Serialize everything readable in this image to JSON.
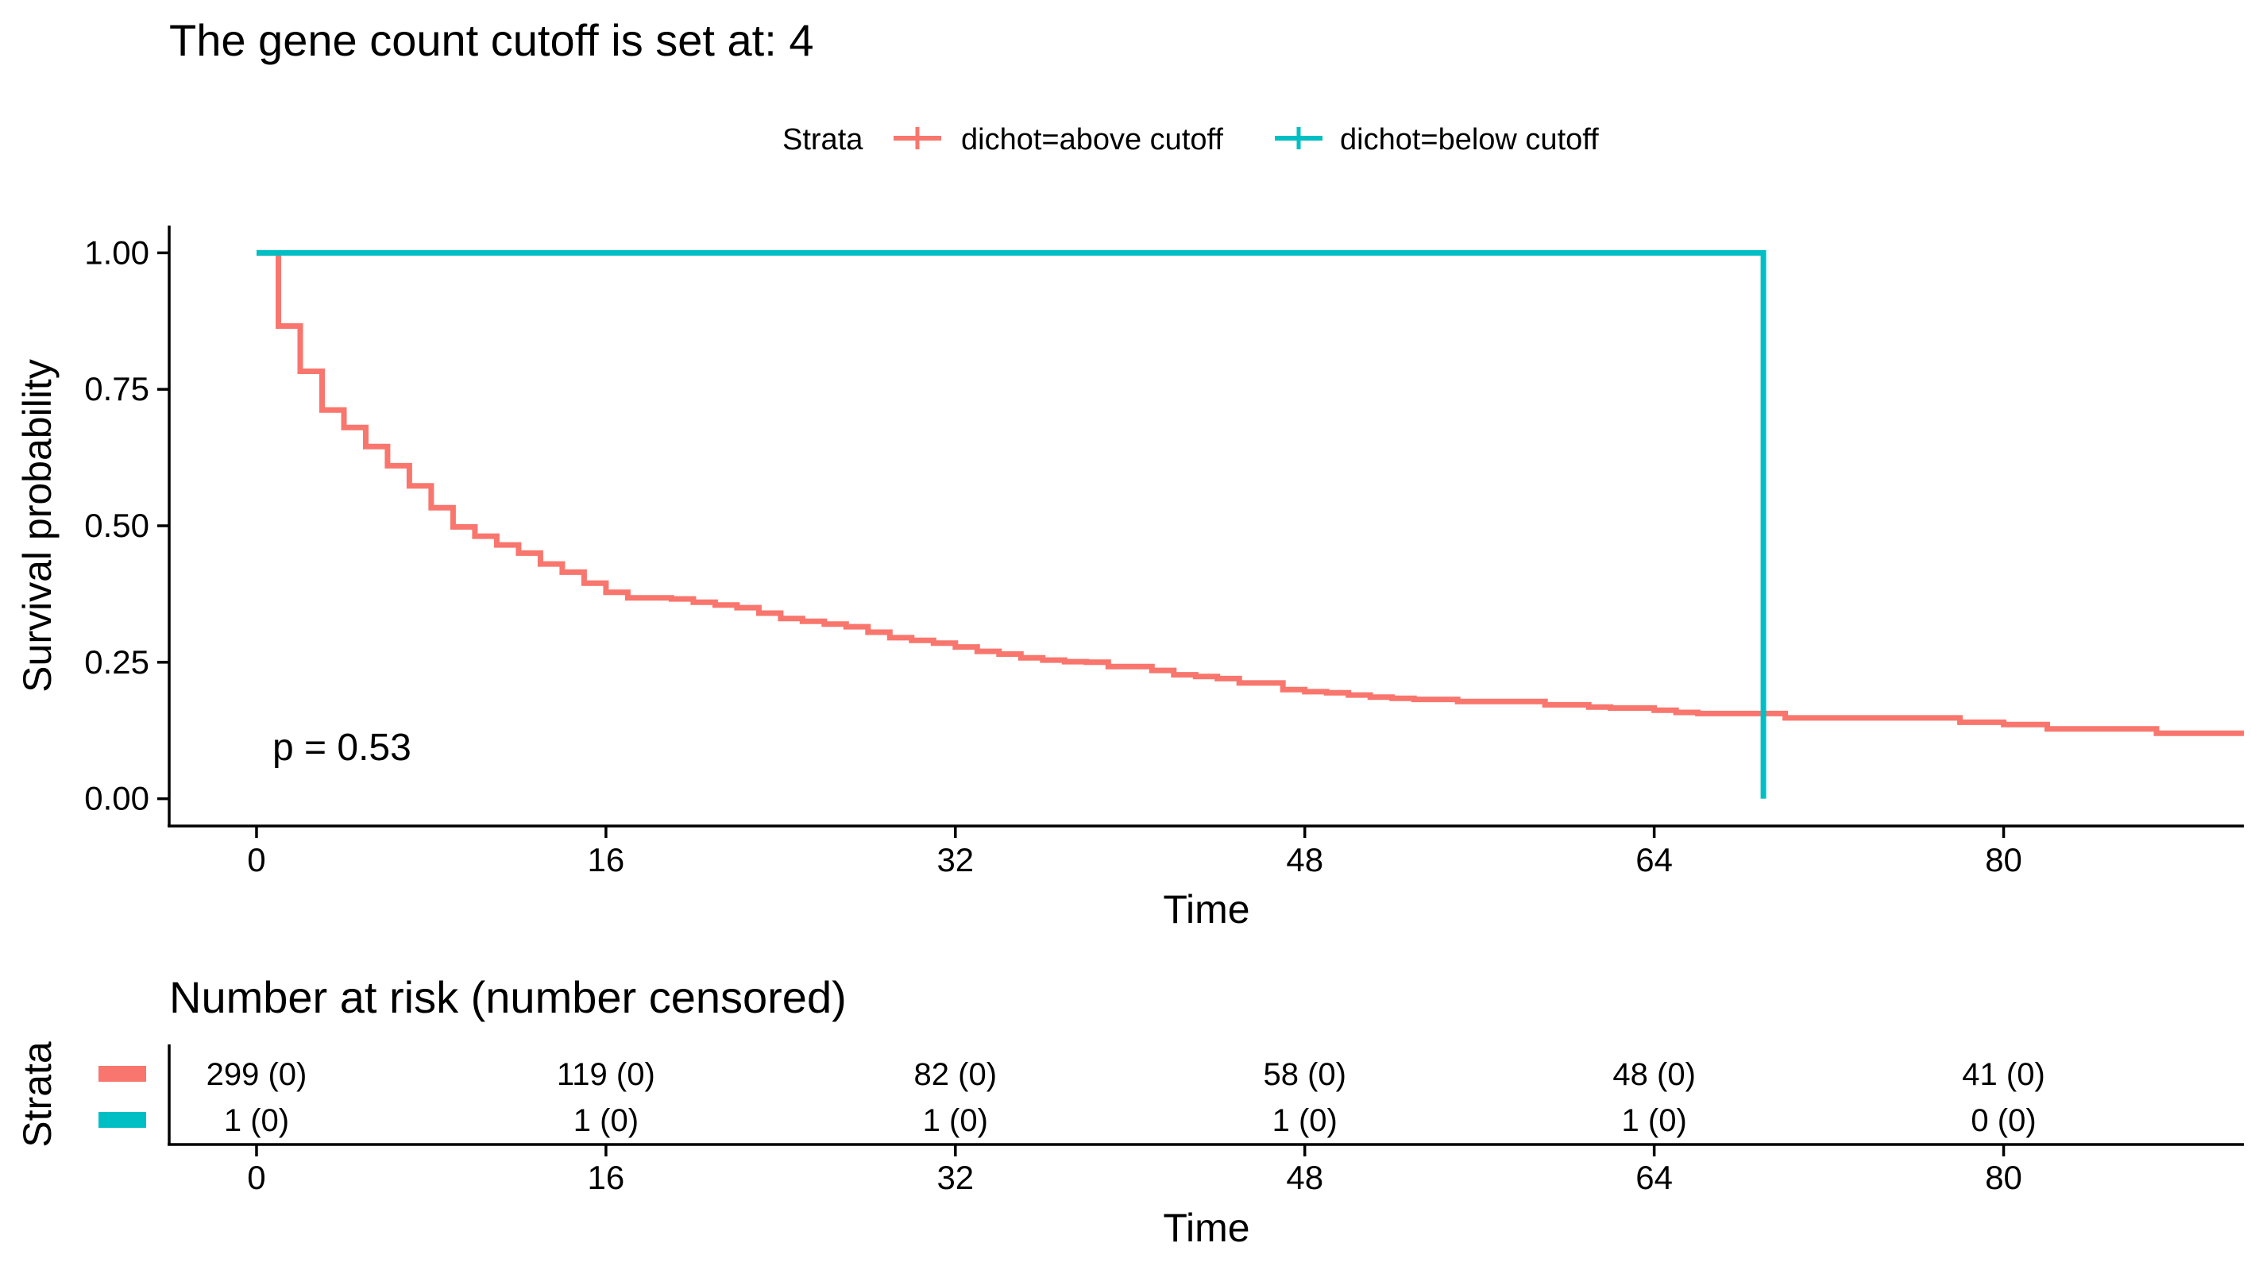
{
  "chart_data": [
    {
      "type": "line",
      "subtype": "kaplan-meier step",
      "title": "The gene count cutoff is set at: 4",
      "xlabel": "Time",
      "ylabel": "Survival probability",
      "xlim": [
        -4,
        91
      ],
      "ylim": [
        -0.05,
        1.05
      ],
      "x_ticks": [
        0,
        16,
        32,
        48,
        64,
        80
      ],
      "y_ticks": [
        0,
        0.25,
        0.5,
        0.75,
        1.0
      ],
      "y_tick_labels": [
        "0.00",
        "0.25",
        "0.50",
        "0.75",
        "1.00"
      ],
      "grid": false,
      "legend": {
        "title": "Strata",
        "position": "top",
        "entries": [
          "dichot=above cutoff",
          "dichot=below cutoff"
        ]
      },
      "annotation": "p = 0.53",
      "series": [
        {
          "name": "dichot=above cutoff",
          "color": "#F8766D",
          "steps": [
            [
              0,
              1.0
            ],
            [
              1,
              0.866
            ],
            [
              2,
              0.783
            ],
            [
              3,
              0.712
            ],
            [
              4,
              0.68
            ],
            [
              5,
              0.645
            ],
            [
              6,
              0.61
            ],
            [
              7,
              0.573
            ],
            [
              8,
              0.533
            ],
            [
              9,
              0.498
            ],
            [
              10,
              0.481
            ],
            [
              11,
              0.465
            ],
            [
              12,
              0.45
            ],
            [
              13,
              0.43
            ],
            [
              14,
              0.415
            ],
            [
              15,
              0.395
            ],
            [
              16,
              0.378
            ],
            [
              17,
              0.368
            ],
            [
              19,
              0.366
            ],
            [
              20,
              0.36
            ],
            [
              21,
              0.355
            ],
            [
              22,
              0.35
            ],
            [
              23,
              0.34
            ],
            [
              24,
              0.33
            ],
            [
              25,
              0.325
            ],
            [
              26,
              0.32
            ],
            [
              27,
              0.315
            ],
            [
              28,
              0.305
            ],
            [
              29,
              0.295
            ],
            [
              30,
              0.29
            ],
            [
              31,
              0.285
            ],
            [
              32,
              0.278
            ],
            [
              33,
              0.27
            ],
            [
              34,
              0.265
            ],
            [
              35,
              0.258
            ],
            [
              36,
              0.254
            ],
            [
              37,
              0.251
            ],
            [
              38,
              0.25
            ],
            [
              39,
              0.242
            ],
            [
              41,
              0.235
            ],
            [
              42,
              0.227
            ],
            [
              43,
              0.224
            ],
            [
              44,
              0.22
            ],
            [
              45,
              0.212
            ],
            [
              47,
              0.2
            ],
            [
              48,
              0.196
            ],
            [
              49,
              0.194
            ],
            [
              50,
              0.19
            ],
            [
              51,
              0.186
            ],
            [
              52,
              0.184
            ],
            [
              53,
              0.182
            ],
            [
              55,
              0.178
            ],
            [
              59,
              0.172
            ],
            [
              61,
              0.168
            ],
            [
              62,
              0.166
            ],
            [
              64,
              0.162
            ],
            [
              65,
              0.158
            ],
            [
              66,
              0.156
            ],
            [
              70,
              0.148
            ],
            [
              78,
              0.14
            ],
            [
              80,
              0.136
            ],
            [
              82,
              0.128
            ],
            [
              87,
              0.12
            ],
            [
              91,
              0.12
            ]
          ]
        },
        {
          "name": "dichot=below cutoff",
          "color": "#00BFC4",
          "steps": [
            [
              0,
              1.0
            ],
            [
              69,
              0.0
            ]
          ]
        }
      ]
    },
    {
      "type": "table",
      "title": "Number at risk (number censored)",
      "xlabel": "Time",
      "ylabel": "Strata",
      "x_ticks": [
        0,
        16,
        32,
        48,
        64,
        80
      ],
      "rows": [
        {
          "strata": "dichot=above cutoff",
          "color": "#F8766D",
          "values": [
            "299 (0)",
            "119 (0)",
            "82 (0)",
            "58 (0)",
            "48 (0)",
            "41 (0)"
          ]
        },
        {
          "strata": "dichot=below cutoff",
          "color": "#00BFC4",
          "values": [
            "1 (0)",
            "1 (0)",
            "1 (0)",
            "1 (0)",
            "1 (0)",
            "0 (0)"
          ]
        }
      ]
    }
  ]
}
